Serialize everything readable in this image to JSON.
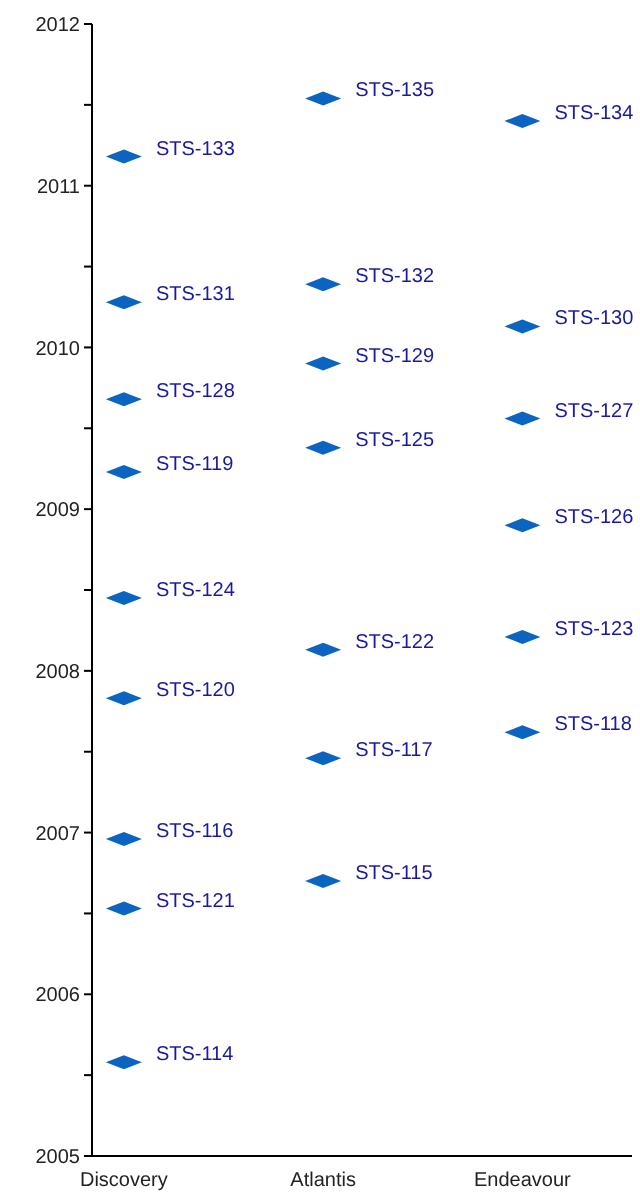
{
  "chart_data": {
    "type": "scatter",
    "categories": [
      "Discovery",
      "Atlantis",
      "Endeavour"
    ],
    "series": [
      {
        "color": "#0a64c0",
        "x": [
          "Discovery",
          "Discovery",
          "Discovery",
          "Discovery",
          "Discovery",
          "Discovery",
          "Discovery",
          "Discovery",
          "Discovery",
          "Atlantis",
          "Atlantis",
          "Atlantis",
          "Atlantis",
          "Atlantis",
          "Atlantis",
          "Atlantis",
          "Endeavour",
          "Endeavour",
          "Endeavour",
          "Endeavour",
          "Endeavour",
          "Endeavour"
        ],
        "values": [
          2011.18,
          2010.28,
          2009.68,
          2009.23,
          2008.45,
          2007.83,
          2006.96,
          2006.53,
          2005.58,
          2011.54,
          2010.39,
          2009.9,
          2009.38,
          2008.13,
          2007.46,
          2006.7,
          2011.4,
          2010.13,
          2009.56,
          2008.9,
          2008.21,
          2007.62
        ]
      }
    ],
    "annotations": [
      {
        "text": "STS-133",
        "x": "Discovery",
        "y": 2011.18
      },
      {
        "text": "STS-131",
        "x": "Discovery",
        "y": 2010.28
      },
      {
        "text": "STS-128",
        "x": "Discovery",
        "y": 2009.68
      },
      {
        "text": "STS-119",
        "x": "Discovery",
        "y": 2009.23
      },
      {
        "text": "STS-124",
        "x": "Discovery",
        "y": 2008.45
      },
      {
        "text": "STS-120",
        "x": "Discovery",
        "y": 2007.83
      },
      {
        "text": "STS-116",
        "x": "Discovery",
        "y": 2006.96
      },
      {
        "text": "STS-121",
        "x": "Discovery",
        "y": 2006.53
      },
      {
        "text": "STS-114",
        "x": "Discovery",
        "y": 2005.58
      },
      {
        "text": "STS-135",
        "x": "Atlantis",
        "y": 2011.54
      },
      {
        "text": "STS-132",
        "x": "Atlantis",
        "y": 2010.39
      },
      {
        "text": "STS-129",
        "x": "Atlantis",
        "y": 2009.9
      },
      {
        "text": "STS-125",
        "x": "Atlantis",
        "y": 2009.38
      },
      {
        "text": "STS-122",
        "x": "Atlantis",
        "y": 2008.13
      },
      {
        "text": "STS-117",
        "x": "Atlantis",
        "y": 2007.46
      },
      {
        "text": "STS-115",
        "x": "Atlantis",
        "y": 2006.7
      },
      {
        "text": "STS-134",
        "x": "Endeavour",
        "y": 2011.4
      },
      {
        "text": "STS-130",
        "x": "Endeavour",
        "y": 2010.13
      },
      {
        "text": "STS-127",
        "x": "Endeavour",
        "y": 2009.56
      },
      {
        "text": "STS-126",
        "x": "Endeavour",
        "y": 2008.9
      },
      {
        "text": "STS-123",
        "x": "Endeavour",
        "y": 2008.21
      },
      {
        "text": "STS-118",
        "x": "Endeavour",
        "y": 2007.62
      }
    ],
    "ylim": [
      2005,
      2012
    ],
    "yticks": [
      2005,
      {
        "value": 2005.5,
        "label": null
      },
      2006,
      {
        "value": 2006.5,
        "label": null
      },
      2007,
      {
        "value": 2007.5,
        "label": null
      },
      2008,
      {
        "value": 2008.5,
        "label": null
      },
      2009,
      {
        "value": 2009.5,
        "label": null
      },
      2010,
      {
        "value": 2010.5,
        "label": null
      },
      2011,
      {
        "value": 2011.5,
        "label": null
      },
      2012
    ]
  }
}
